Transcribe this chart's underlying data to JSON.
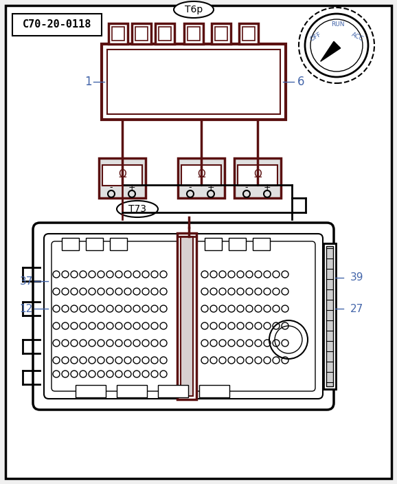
{
  "bg_color": "#f0f0f0",
  "border_color": "#000000",
  "dark_red": "#5a1010",
  "gray": "#888888",
  "blue_text": "#4466aa",
  "title_box": "C70-20-0118",
  "connector_top_label": "T6p",
  "connector_bottom_label": "T73",
  "pin_labels_left": [
    "1",
    "37",
    "12"
  ],
  "pin_labels_right": [
    "6",
    "39",
    "27"
  ],
  "dial_labels": [
    "OFF",
    "RUN",
    "ACC"
  ]
}
